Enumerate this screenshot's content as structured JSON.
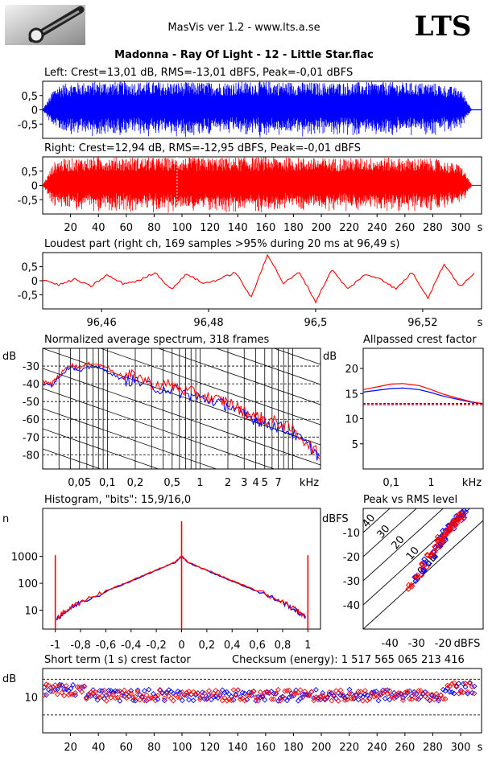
{
  "header": {
    "app_title": "MasVis ver 1.2 - www.lts.a.se",
    "brand": "LTS",
    "track_title": "Madonna - Ray Of Light - 12 - Little Star.flac"
  },
  "colors": {
    "left": "#0000ff",
    "right": "#ff0000",
    "grid": "#000000"
  },
  "chart_data": [
    {
      "type": "area",
      "title": "Left: Crest=13,01 dB, RMS=-13,01 dBFS, Peak=-0,01 dBFS",
      "series": [
        {
          "channel": "left",
          "envelope": [
            [
              0,
              0.02
            ],
            [
              4,
              0.35
            ],
            [
              8,
              0.75
            ],
            [
              12,
              0.9
            ],
            [
              20,
              0.95
            ],
            [
              40,
              1.0
            ],
            [
              80,
              0.98
            ],
            [
              120,
              0.97
            ],
            [
              160,
              1.0
            ],
            [
              200,
              0.96
            ],
            [
              240,
              0.98
            ],
            [
              280,
              0.95
            ],
            [
              300,
              0.75
            ],
            [
              305,
              0.3
            ],
            [
              308,
              0.02
            ]
          ]
        }
      ],
      "yticks": [
        "0,5",
        "0",
        "-0,5"
      ],
      "ylim": [
        -1,
        1
      ],
      "xlim": [
        0,
        315
      ]
    },
    {
      "type": "area",
      "title": "Right: Crest=12,94 dB, RMS=-12,95 dBFS, Peak=-0,01 dBFS",
      "series": [
        {
          "channel": "right",
          "envelope": [
            [
              0,
              0.02
            ],
            [
              4,
              0.4
            ],
            [
              8,
              0.8
            ],
            [
              12,
              0.92
            ],
            [
              20,
              0.95
            ],
            [
              40,
              1.0
            ],
            [
              80,
              0.98
            ],
            [
              120,
              0.97
            ],
            [
              160,
              1.0
            ],
            [
              200,
              0.96
            ],
            [
              240,
              0.98
            ],
            [
              280,
              0.95
            ],
            [
              300,
              0.72
            ],
            [
              305,
              0.3
            ],
            [
              308,
              0.02
            ]
          ]
        }
      ],
      "yticks": [
        "0,5",
        "0",
        "-0,5"
      ],
      "marker_x": 96.49,
      "xticks": [
        "20",
        "40",
        "60",
        "80",
        "100",
        "120",
        "140",
        "160",
        "180",
        "200",
        "220",
        "240",
        "260",
        "280",
        "300"
      ],
      "xunit": "s",
      "ylim": [
        -1,
        1
      ],
      "xlim": [
        0,
        315
      ]
    },
    {
      "type": "line",
      "title": "Loudest part (right ch, 169 samples >95% during 20 ms at 96,49 s)",
      "x": [
        96.449,
        96.452,
        96.455,
        96.458,
        96.461,
        96.464,
        96.467,
        96.47,
        96.473,
        96.476,
        96.479,
        96.482,
        96.485,
        96.488,
        96.491,
        96.494,
        96.497,
        96.5,
        96.503,
        96.506,
        96.509,
        96.512,
        96.515,
        96.518,
        96.521,
        96.524,
        96.527,
        96.53
      ],
      "y": [
        0.05,
        -0.15,
        0.05,
        -0.2,
        0.2,
        -0.1,
        0.0,
        0.3,
        -0.3,
        0.25,
        -0.1,
        0.05,
        0.3,
        -0.6,
        0.95,
        -0.1,
        0.3,
        -0.75,
        0.4,
        -0.3,
        0.2,
        0.1,
        -0.3,
        0.3,
        -0.6,
        0.6,
        -0.2,
        0.3
      ],
      "yticks": [
        "0,5",
        "0",
        "-0,5"
      ],
      "xticks": [
        "96,46",
        "96,48",
        "96,5",
        "96,52"
      ],
      "xtick_values": [
        96.46,
        96.48,
        96.5,
        96.52
      ],
      "xunit": "s",
      "ylim": [
        -1,
        1
      ],
      "xlim": [
        96.449,
        96.531
      ]
    },
    {
      "type": "line",
      "title": "Normalized average spectrum, 318 frames",
      "yunit": "dB",
      "series": [
        {
          "channel": "left",
          "x": [
            0.02,
            0.025,
            0.03,
            0.04,
            0.05,
            0.07,
            0.1,
            0.15,
            0.2,
            0.3,
            0.5,
            0.7,
            1,
            1.5,
            2,
            3,
            4,
            5,
            7,
            10,
            15,
            20
          ],
          "y": [
            -40,
            -41,
            -36,
            -30,
            -33,
            -30,
            -33,
            -38,
            -38,
            -42,
            -43,
            -46,
            -48,
            -50,
            -52,
            -58,
            -60,
            -62,
            -64,
            -68,
            -75,
            -82
          ]
        },
        {
          "channel": "right",
          "x": [
            0.02,
            0.025,
            0.03,
            0.04,
            0.05,
            0.07,
            0.1,
            0.15,
            0.2,
            0.3,
            0.5,
            0.7,
            1,
            1.5,
            2,
            3,
            4,
            5,
            7,
            10,
            15,
            20
          ],
          "y": [
            -39,
            -40,
            -35,
            -29,
            -31,
            -28,
            -31,
            -36,
            -35,
            -40,
            -41,
            -44,
            -46,
            -49,
            -50,
            -56,
            -58,
            -60,
            -62,
            -66,
            -74,
            -81
          ]
        }
      ],
      "yticks": [
        "-30",
        "-40",
        "-50",
        "-60",
        "-70",
        "-80"
      ],
      "xticks": [
        "0,05",
        "0,1",
        "0,2",
        "0,5",
        "1",
        "2",
        "3",
        "4",
        "5",
        "7"
      ],
      "xtick_values": [
        0.05,
        0.1,
        0.2,
        0.5,
        1,
        2,
        3,
        4,
        5,
        7
      ],
      "xunit": "kHz",
      "xlog": true,
      "xlim": [
        0.02,
        20
      ],
      "ylim": [
        -88,
        -20
      ]
    },
    {
      "type": "line",
      "title": "Allpassed crest factor",
      "yunit": "dB",
      "series": [
        {
          "channel": "left",
          "x": [
            0.02,
            0.05,
            0.1,
            0.2,
            0.5,
            1,
            2,
            5,
            10,
            20
          ],
          "y": [
            15.3,
            15.7,
            16,
            16.1,
            15.8,
            15.2,
            14.5,
            13.8,
            13.3,
            13
          ]
        },
        {
          "channel": "right",
          "x": [
            0.02,
            0.05,
            0.1,
            0.2,
            0.5,
            1,
            2,
            5,
            10,
            20
          ],
          "y": [
            15.8,
            16.4,
            16.9,
            17,
            16.6,
            15.8,
            14.9,
            14,
            13.4,
            13
          ]
        }
      ],
      "ref_levels": [
        13.01,
        12.94
      ],
      "yticks": [
        "20",
        "15",
        "10",
        "5"
      ],
      "xticks": [
        "0,1",
        "1"
      ],
      "xtick_values": [
        0.1,
        1
      ],
      "xunit": "kHz",
      "xlog": true,
      "xlim": [
        0.02,
        20
      ],
      "ylim": [
        0,
        24
      ]
    },
    {
      "type": "line",
      "title": "Histogram, \"bits\": 15,9/16,0",
      "yunit": "n",
      "series": [
        {
          "channel": "left",
          "x": [
            -0.99,
            -0.9,
            -0.8,
            -0.6,
            -0.4,
            -0.2,
            -0.05,
            0,
            0.05,
            0.2,
            0.4,
            0.6,
            0.8,
            0.9,
            0.99
          ],
          "y": [
            5,
            10,
            20,
            50,
            120,
            300,
            600,
            1000,
            600,
            300,
            120,
            50,
            20,
            10,
            5
          ]
        },
        {
          "channel": "right",
          "x": [
            -0.99,
            -0.9,
            -0.8,
            -0.6,
            -0.4,
            -0.2,
            -0.05,
            0,
            0.05,
            0.2,
            0.4,
            0.6,
            0.8,
            0.9,
            0.99
          ],
          "y": [
            5,
            11,
            21,
            52,
            125,
            310,
            610,
            1050,
            610,
            310,
            125,
            52,
            21,
            11,
            5
          ]
        }
      ],
      "spikes": [
        {
          "x": -1,
          "n": 1100
        },
        {
          "x": 0,
          "n": 20000
        },
        {
          "x": 1,
          "n": 1100
        }
      ],
      "yticks": [
        "1000",
        "100",
        "10"
      ],
      "xticks": [
        "-1",
        "-0,8",
        "-0,6",
        "-0,4",
        "-0,2",
        "0",
        "0,2",
        "0,4",
        "0,6",
        "0,8",
        "1"
      ],
      "xlim": [
        -1.1,
        1.1
      ],
      "ylog": true,
      "ylim": [
        2,
        60000
      ]
    },
    {
      "type": "scatter",
      "title": "Peak vs RMS level",
      "yunit": "dBFS",
      "series": [
        {
          "channel": "left",
          "x": [
            -30,
            -28,
            -26,
            -24,
            -22,
            -21,
            -20,
            -19,
            -18,
            -17,
            -16,
            -15,
            -14,
            -13,
            -12
          ],
          "y": [
            -29,
            -26,
            -22,
            -19,
            -15,
            -14,
            -12,
            -10,
            -9,
            -8,
            -6,
            -5,
            -4,
            -3,
            -2
          ]
        },
        {
          "channel": "right",
          "x": [
            -32,
            -29,
            -27,
            -25,
            -23,
            -22,
            -21,
            -20,
            -19,
            -18,
            -17,
            -16,
            -15,
            -14,
            -13
          ],
          "y": [
            -33,
            -28,
            -24,
            -20,
            -17,
            -15,
            -13,
            -12,
            -10,
            -9,
            -7,
            -6,
            -5,
            -4,
            -3
          ]
        }
      ],
      "diagonal_labels": [
        "40",
        "30",
        "20",
        "10",
        "0 dB"
      ],
      "yticks": [
        "-10",
        "-20",
        "-30",
        "-40"
      ],
      "xticks": [
        "-40",
        "-30",
        "-20"
      ],
      "xunit": "dBFS",
      "xlim": [
        -50,
        -5
      ],
      "ylim": [
        -50,
        0
      ]
    },
    {
      "type": "scatter",
      "title": "Short term (1 s) crest factor",
      "subtitle": "Checksum (energy):  1 517 565 065 213 416",
      "yunit": "dB",
      "yticks": [
        "10"
      ],
      "ref_levels": [
        15,
        5
      ],
      "xticks": [
        "20",
        "40",
        "60",
        "80",
        "100",
        "120",
        "140",
        "160",
        "180",
        "200",
        "220",
        "240",
        "260",
        "280",
        "300"
      ],
      "xunit": "s",
      "xlim": [
        0,
        315
      ],
      "ylim": [
        0,
        18
      ]
    }
  ]
}
